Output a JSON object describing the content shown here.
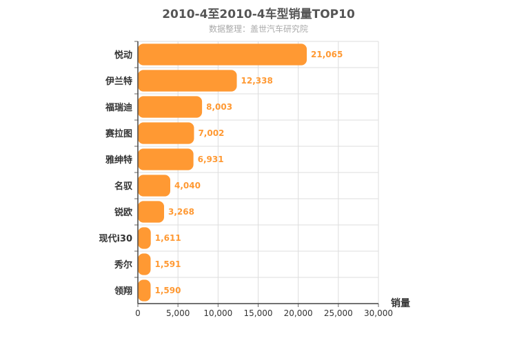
{
  "chart_data": {
    "type": "bar",
    "orientation": "horizontal",
    "title": "2010-4至2010-4车型销量TOP10",
    "subtitle": "数据整理：盖世汽车研究院",
    "categories": [
      "悦动",
      "伊兰特",
      "福瑞迪",
      "赛拉图",
      "雅绅特",
      "名驭",
      "锐欧",
      "现代i30",
      "秀尔",
      "领翔"
    ],
    "values": [
      21065,
      12338,
      8003,
      7002,
      6931,
      4040,
      3268,
      1611,
      1591,
      1590
    ],
    "value_labels": [
      "21,065",
      "12,338",
      "8,003",
      "7,002",
      "6,931",
      "4,040",
      "3,268",
      "1,611",
      "1,591",
      "1,590"
    ],
    "xlabel": "销量",
    "ylabel": "",
    "xlim": [
      0,
      30000
    ],
    "xticks": [
      0,
      5000,
      10000,
      15000,
      20000,
      25000,
      30000
    ],
    "xtick_labels": [
      "0",
      "5,000",
      "10,000",
      "15,000",
      "20,000",
      "25,000",
      "30,000"
    ],
    "grid": true,
    "bar_color": "#ff9933"
  }
}
